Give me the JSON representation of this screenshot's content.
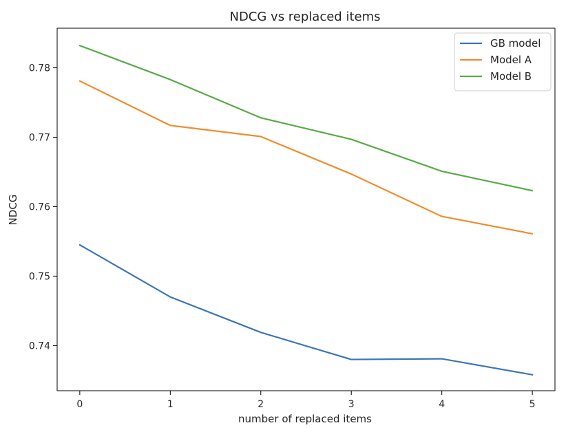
{
  "chart_data": {
    "type": "line",
    "title": "NDCG vs replaced items",
    "xlabel": "number of replaced items",
    "ylabel": "NDCG",
    "x": [
      0,
      1,
      2,
      3,
      4,
      5
    ],
    "xlim": [
      -0.25,
      5.25
    ],
    "ylim": [
      0.7335,
      0.7857
    ],
    "xticks": [
      "0",
      "1",
      "2",
      "3",
      "4",
      "5"
    ],
    "yticks": [
      "0.74",
      "0.75",
      "0.76",
      "0.77",
      "0.78"
    ],
    "grid": false,
    "legend_position": "top-right",
    "series": [
      {
        "name": "GB model",
        "color": "#3b76b5",
        "values": [
          0.7545,
          0.747,
          0.7419,
          0.738,
          0.7381,
          0.7358
        ]
      },
      {
        "name": "Model A",
        "color": "#f28c2a",
        "values": [
          0.7781,
          0.7717,
          0.7701,
          0.7647,
          0.7586,
          0.7561
        ]
      },
      {
        "name": "Model B",
        "color": "#56ab45",
        "values": [
          0.7832,
          0.7783,
          0.7728,
          0.7697,
          0.7651,
          0.7623
        ]
      }
    ]
  }
}
